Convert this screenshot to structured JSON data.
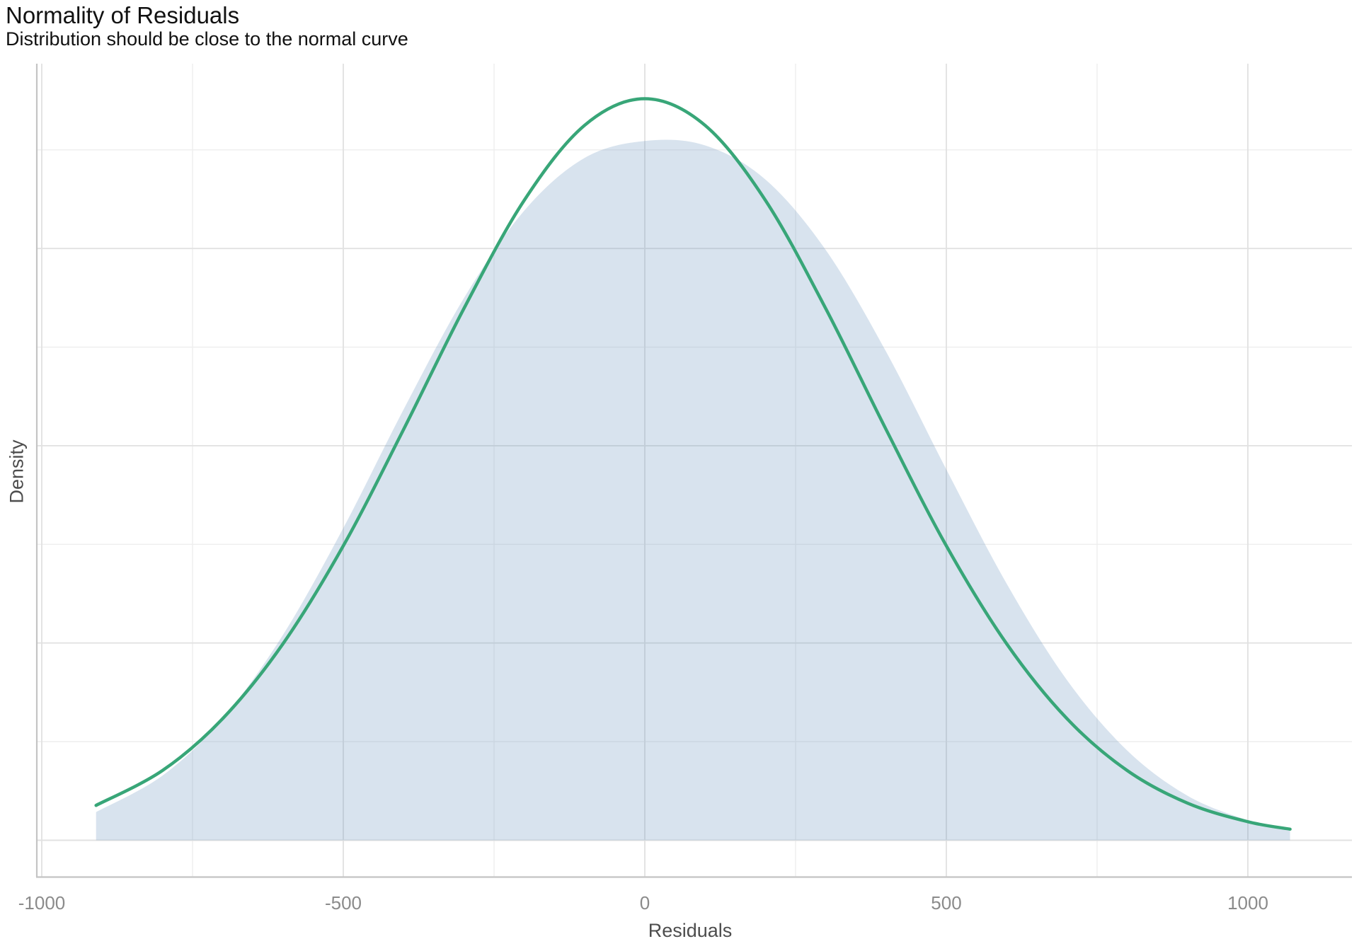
{
  "chart_data": {
    "type": "area",
    "title": "Normality of Residuals",
    "subtitle": "Distribution should be close to the normal curve",
    "xlabel": "Residuals",
    "ylabel": "Density",
    "x_ticks": [
      {
        "value": -1000,
        "label": "-1000"
      },
      {
        "value": -500,
        "label": "-500"
      },
      {
        "value": 0,
        "label": "0"
      },
      {
        "value": 500,
        "label": "500"
      },
      {
        "value": 1000,
        "label": "1000"
      }
    ],
    "x_minor_ticks": [
      -750,
      -250,
      250,
      750
    ],
    "xlim": [
      -1009,
      1169
    ],
    "ylim": [
      0,
      1.05
    ],
    "y_tick_labels": [],
    "grid": true,
    "legend": "none",
    "y_gridlines_density_units": {
      "major": [
        0,
        0.266,
        0.532,
        0.798
      ],
      "minor": [
        0.133,
        0.399,
        0.665,
        0.931
      ]
    },
    "series": [
      {
        "name": "residuals-density",
        "type": "area",
        "fill": "rgba(100,143,188,0.25)",
        "x": [
          -910,
          -800,
          -700,
          -600,
          -500,
          -400,
          -300,
          -200,
          -100,
          0,
          100,
          200,
          300,
          400,
          500,
          600,
          700,
          800,
          900,
          1000,
          1070
        ],
        "y": [
          0.038,
          0.087,
          0.164,
          0.277,
          0.421,
          0.581,
          0.731,
          0.849,
          0.92,
          0.943,
          0.937,
          0.891,
          0.796,
          0.659,
          0.5,
          0.346,
          0.216,
          0.121,
          0.06,
          0.027,
          0.014
        ]
      },
      {
        "name": "normal-curve",
        "type": "line",
        "color": "#38a678",
        "stroke_width": 4.5,
        "x": [
          -910,
          -800,
          -700,
          -600,
          -500,
          -400,
          -300,
          -200,
          -100,
          0,
          100,
          200,
          300,
          400,
          500,
          600,
          700,
          800,
          900,
          1000,
          1070
        ],
        "y": [
          0.047,
          0.094,
          0.164,
          0.265,
          0.397,
          0.554,
          0.717,
          0.863,
          0.964,
          1.0,
          0.964,
          0.863,
          0.717,
          0.554,
          0.397,
          0.265,
          0.164,
          0.094,
          0.05,
          0.025,
          0.015
        ]
      }
    ],
    "style": {
      "grid_major_color": "#e2e2e2",
      "grid_minor_color": "#eeeeee",
      "axis_line_color": "#c4c4c4",
      "tick_label_color": "#8b8b8b",
      "axis_title_color": "#4d4d4d",
      "title_color": "#111111",
      "background": "#ffffff"
    }
  }
}
